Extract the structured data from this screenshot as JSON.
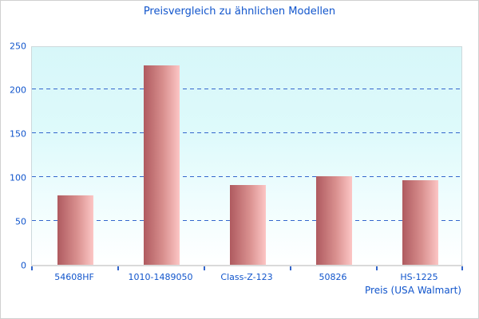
{
  "chart_data": {
    "type": "bar",
    "title": "Preisvergleich zu ähnlichen Modellen",
    "categories": [
      "54608HF",
      "1010-1489050",
      "Class-Z-123",
      "50826",
      "HS-1225"
    ],
    "values": [
      79,
      227,
      91,
      101,
      96
    ],
    "xlabel": "Preis (USA Walmart)",
    "ylabel": "",
    "ylim": [
      0,
      250
    ],
    "yticks": [
      0,
      50,
      100,
      150,
      200,
      250
    ],
    "grid": true,
    "gridline_style": "dashed",
    "legend": false
  },
  "colors": {
    "text": "#1155cc",
    "gridline": "#3366cc",
    "bar_gradient_left": "#af5a5f",
    "bar_gradient_right": "#fcc6c5",
    "plot_bg_top": "#d7f7f9",
    "plot_bg_bottom": "#ffffff",
    "plot_border": "#cdd9dc",
    "axis_line": "#dadada",
    "outer_border": "#d0d0d0"
  }
}
